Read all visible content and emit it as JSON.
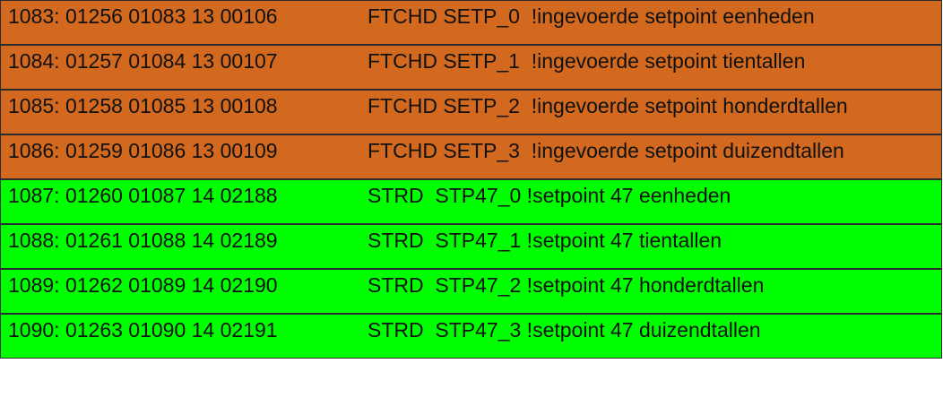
{
  "colors": {
    "fetch_row": "#D2691E",
    "store_row": "#00FF00",
    "border": "#2B2B2B",
    "text": "#111111"
  },
  "rows": [
    {
      "address": "1083: 01256 01083 13 00106",
      "instruction": "FTCHD SETP_0  !ingevoerde setpoint eenheden",
      "group": "fetch"
    },
    {
      "address": "1084: 01257 01084 13 00107",
      "instruction": "FTCHD SETP_1  !ingevoerde setpoint tientallen",
      "group": "fetch"
    },
    {
      "address": "1085: 01258 01085 13 00108",
      "instruction": "FTCHD SETP_2  !ingevoerde setpoint honderdtallen",
      "group": "fetch"
    },
    {
      "address": "1086: 01259 01086 13 00109",
      "instruction": "FTCHD SETP_3  !ingevoerde setpoint duizendtallen",
      "group": "fetch"
    },
    {
      "address": "1087: 01260 01087 14 02188",
      "instruction": "STRD  STP47_0 !setpoint 47 eenheden",
      "group": "store"
    },
    {
      "address": "1088: 01261 01088 14 02189",
      "instruction": "STRD  STP47_1 !setpoint 47 tientallen",
      "group": "store"
    },
    {
      "address": "1089: 01262 01089 14 02190",
      "instruction": "STRD  STP47_2 !setpoint 47 honderdtallen",
      "group": "store"
    },
    {
      "address": "1090: 01263 01090 14 02191",
      "instruction": "STRD  STP47_3 !setpoint 47 duizendtallen",
      "group": "store"
    }
  ]
}
